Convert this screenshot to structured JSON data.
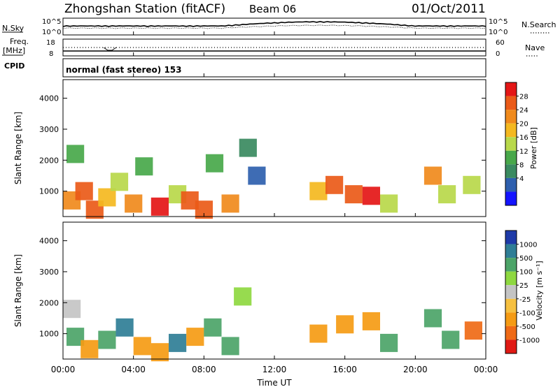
{
  "header": {
    "station": "Zhongshan Station (fitACF)",
    "beam": "Beam 06",
    "date": "01/Oct/2011"
  },
  "strip": {
    "nsky_label": "N.Sky",
    "nsearch_label": "N.Search",
    "freq_label_1": "Freq.",
    "freq_label_2": "[MHz]",
    "nave_label": "Nave",
    "cpid_label": "CPID",
    "nsky_ticks": [
      "10^5",
      "10^0"
    ],
    "nsearch_ticks": [
      "10^5",
      "10^0"
    ],
    "freq_ticks": [
      "18",
      "8"
    ],
    "nave_ticks": [
      "60",
      "0"
    ],
    "mode_text": "normal (fast stereo) 153"
  },
  "colors": {
    "power_scale": [
      "#1414ff",
      "#2e5fae",
      "#3a8a60",
      "#48a84a",
      "#b8d84a",
      "#f4b820",
      "#f08a1c",
      "#ea5a18",
      "#e41616"
    ],
    "velocity_scale": [
      "#e01a14",
      "#ef6a16",
      "#f59b14",
      "#f6c040",
      "#c4c4c4",
      "#8ed840",
      "#4ca468",
      "#2f7e96",
      "#1e3aa8"
    ]
  },
  "chart_data": [
    {
      "type": "heatmap",
      "title": "",
      "xlabel": "Time UT",
      "ylabel": "Slant Range [km]",
      "x_ticks": [
        "00:00",
        "04:00",
        "08:00",
        "12:00",
        "16:00",
        "20:00",
        "00:00"
      ],
      "y_ticks": [
        1000,
        2000,
        3000,
        4000
      ],
      "ylim": [
        180,
        4600
      ],
      "colorbar": {
        "label": "Power [dB]",
        "ticks": [
          4,
          8,
          12,
          16,
          20,
          24,
          28
        ],
        "range": [
          0,
          30
        ]
      },
      "cells": [
        {
          "t": 0.5,
          "r": 700,
          "v": 20
        },
        {
          "t": 0.7,
          "r": 2200,
          "v": 12
        },
        {
          "t": 1.2,
          "r": 1000,
          "v": 24
        },
        {
          "t": 1.8,
          "r": 400,
          "v": 26
        },
        {
          "t": 2.5,
          "r": 800,
          "v": 18
        },
        {
          "t": 3.2,
          "r": 1300,
          "v": 14
        },
        {
          "t": 4.0,
          "r": 600,
          "v": 22
        },
        {
          "t": 4.6,
          "r": 1800,
          "v": 10
        },
        {
          "t": 5.5,
          "r": 500,
          "v": 28
        },
        {
          "t": 6.5,
          "r": 900,
          "v": 16
        },
        {
          "t": 7.2,
          "r": 700,
          "v": 24
        },
        {
          "t": 8.0,
          "r": 400,
          "v": 26
        },
        {
          "t": 8.6,
          "r": 1900,
          "v": 12
        },
        {
          "t": 9.5,
          "r": 600,
          "v": 20
        },
        {
          "t": 10.5,
          "r": 2400,
          "v": 8
        },
        {
          "t": 11.0,
          "r": 1500,
          "v": 6
        },
        {
          "t": 14.5,
          "r": 1000,
          "v": 18
        },
        {
          "t": 15.4,
          "r": 1200,
          "v": 24
        },
        {
          "t": 16.5,
          "r": 900,
          "v": 26
        },
        {
          "t": 17.5,
          "r": 850,
          "v": 28
        },
        {
          "t": 18.5,
          "r": 600,
          "v": 14
        },
        {
          "t": 21.0,
          "r": 1500,
          "v": 22
        },
        {
          "t": 21.8,
          "r": 900,
          "v": 16
        },
        {
          "t": 23.2,
          "r": 1200,
          "v": 14
        }
      ]
    },
    {
      "type": "heatmap",
      "title": "",
      "xlabel": "Time UT",
      "ylabel": "Slant Range [km]",
      "x_ticks": [
        "00:00",
        "04:00",
        "08:00",
        "12:00",
        "16:00",
        "20:00",
        "00:00"
      ],
      "y_ticks": [
        1000,
        2000,
        3000,
        4000
      ],
      "ylim": [
        180,
        4600
      ],
      "colorbar": {
        "label": "Velocity [m s⁻¹]",
        "ticks": [
          1000,
          500,
          100,
          25,
          -25,
          -100,
          -500,
          -1000
        ]
      },
      "cells": [
        {
          "t": 0.5,
          "r": 1800,
          "v": 10
        },
        {
          "t": 0.7,
          "r": 900,
          "v": 150
        },
        {
          "t": 1.5,
          "r": 500,
          "v": -200
        },
        {
          "t": 2.5,
          "r": 800,
          "v": 300
        },
        {
          "t": 3.5,
          "r": 1200,
          "v": 600
        },
        {
          "t": 4.5,
          "r": 600,
          "v": -300
        },
        {
          "t": 5.5,
          "r": 400,
          "v": -150
        },
        {
          "t": 6.5,
          "r": 700,
          "v": 800
        },
        {
          "t": 7.5,
          "r": 900,
          "v": -400
        },
        {
          "t": 8.5,
          "r": 1200,
          "v": 200
        },
        {
          "t": 9.5,
          "r": 600,
          "v": 500
        },
        {
          "t": 10.2,
          "r": 2200,
          "v": 60
        },
        {
          "t": 14.5,
          "r": 1000,
          "v": -200
        },
        {
          "t": 16.0,
          "r": 1300,
          "v": -350
        },
        {
          "t": 17.5,
          "r": 1400,
          "v": -150
        },
        {
          "t": 18.5,
          "r": 700,
          "v": 120
        },
        {
          "t": 21.0,
          "r": 1500,
          "v": 400
        },
        {
          "t": 22.0,
          "r": 800,
          "v": 300
        },
        {
          "t": 23.3,
          "r": 1100,
          "v": -600
        }
      ]
    }
  ]
}
